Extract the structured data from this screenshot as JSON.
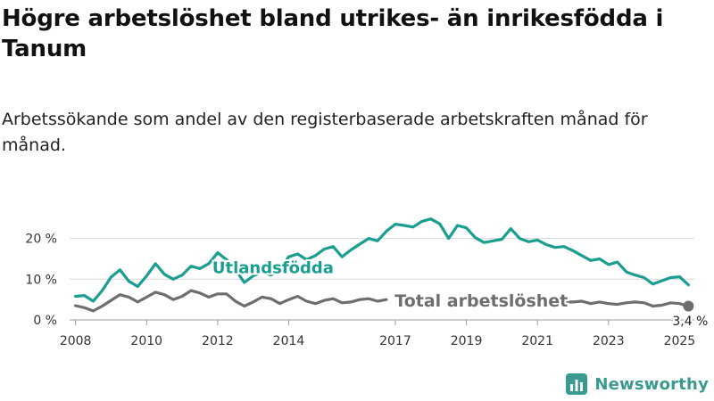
{
  "header": {
    "title": "Högre arbetslöshet bland utrikes- än inrikesfödda i Tanum",
    "subtitle": "Arbetssökande som andel av den registerbaserade arbetskraften månad för månad."
  },
  "brand": {
    "name": "Newsworthy",
    "icon": "bar-chart-logo-icon",
    "color": "#3a9a8f"
  },
  "chart_data": {
    "type": "line",
    "title": "Högre arbetslöshet bland utrikes- än inrikesfödda i Tanum",
    "subtitle": "Arbetssökande som andel av den registerbaserade arbetskraften månad för månad.",
    "xlabel": "",
    "ylabel": "",
    "xlim": [
      "2008-01",
      "2025-04"
    ],
    "ylim": [
      0,
      25
    ],
    "y_ticks": [
      0,
      10,
      20
    ],
    "y_tick_labels": [
      "0 %",
      "10 %",
      "20 %"
    ],
    "x_ticks": [
      "2008-01",
      "2010-01",
      "2012-01",
      "2014-01",
      "2017-01",
      "2019-01",
      "2021-01",
      "2023-01",
      "2025-01"
    ],
    "x_tick_labels": [
      "2008",
      "2010",
      "2012",
      "2014",
      "2017",
      "2019",
      "2021",
      "2023",
      "2025"
    ],
    "grid": true,
    "series": [
      {
        "name": "Utlandsfödda",
        "color": "#1a9e8f",
        "points": [
          [
            "2008-01",
            5.8
          ],
          [
            "2008-04",
            6.0
          ],
          [
            "2008-07",
            4.6
          ],
          [
            "2008-10",
            7.2
          ],
          [
            "2009-01",
            10.5
          ],
          [
            "2009-04",
            12.3
          ],
          [
            "2009-07",
            9.5
          ],
          [
            "2009-10",
            8.2
          ],
          [
            "2010-01",
            10.8
          ],
          [
            "2010-04",
            13.8
          ],
          [
            "2010-07",
            11.2
          ],
          [
            "2010-10",
            10.0
          ],
          [
            "2011-01",
            11.0
          ],
          [
            "2011-04",
            13.2
          ],
          [
            "2011-07",
            12.6
          ],
          [
            "2011-10",
            13.8
          ],
          [
            "2012-01",
            16.5
          ],
          [
            "2012-04",
            14.8
          ],
          [
            "2012-07",
            12.4
          ],
          [
            "2012-10",
            9.2
          ],
          [
            "2013-01",
            10.8
          ],
          [
            "2013-04",
            11.8
          ],
          [
            "2013-07",
            11.0
          ],
          [
            "2013-10",
            12.5
          ],
          [
            "2014-01",
            15.5
          ],
          [
            "2014-04",
            16.2
          ],
          [
            "2014-07",
            14.8
          ],
          [
            "2014-10",
            15.8
          ],
          [
            "2015-01",
            17.4
          ],
          [
            "2015-04",
            18.0
          ],
          [
            "2015-07",
            15.5
          ],
          [
            "2015-10",
            17.2
          ],
          [
            "2016-01",
            18.6
          ],
          [
            "2016-04",
            20.0
          ],
          [
            "2016-07",
            19.4
          ],
          [
            "2016-10",
            21.8
          ],
          [
            "2017-01",
            23.5
          ],
          [
            "2017-04",
            23.2
          ],
          [
            "2017-07",
            22.8
          ],
          [
            "2017-10",
            24.2
          ],
          [
            "2018-01",
            24.8
          ],
          [
            "2018-04",
            23.6
          ],
          [
            "2018-07",
            20.0
          ],
          [
            "2018-10",
            23.2
          ],
          [
            "2019-01",
            22.6
          ],
          [
            "2019-04",
            20.2
          ],
          [
            "2019-07",
            19.0
          ],
          [
            "2019-10",
            19.4
          ],
          [
            "2020-01",
            19.8
          ],
          [
            "2020-04",
            22.4
          ],
          [
            "2020-07",
            20.0
          ],
          [
            "2020-10",
            19.2
          ],
          [
            "2021-01",
            19.6
          ],
          [
            "2021-04",
            18.5
          ],
          [
            "2021-07",
            17.8
          ],
          [
            "2021-10",
            18.0
          ],
          [
            "2022-01",
            17.0
          ],
          [
            "2022-04",
            15.8
          ],
          [
            "2022-07",
            14.6
          ],
          [
            "2022-10",
            15.0
          ],
          [
            "2023-01",
            13.6
          ],
          [
            "2023-04",
            14.2
          ],
          [
            "2023-07",
            11.8
          ],
          [
            "2023-10",
            11.0
          ],
          [
            "2024-01",
            10.4
          ],
          [
            "2024-04",
            8.8
          ],
          [
            "2024-07",
            9.6
          ],
          [
            "2024-10",
            10.4
          ],
          [
            "2025-01",
            10.6
          ],
          [
            "2025-04",
            8.6
          ]
        ]
      },
      {
        "name": "Total arbetslöshet",
        "color": "#6e6e6e",
        "points": [
          [
            "2008-01",
            3.5
          ],
          [
            "2008-04",
            3.0
          ],
          [
            "2008-07",
            2.2
          ],
          [
            "2008-10",
            3.4
          ],
          [
            "2009-01",
            4.8
          ],
          [
            "2009-04",
            6.2
          ],
          [
            "2009-07",
            5.6
          ],
          [
            "2009-10",
            4.4
          ],
          [
            "2010-01",
            5.6
          ],
          [
            "2010-04",
            6.8
          ],
          [
            "2010-07",
            6.2
          ],
          [
            "2010-10",
            5.0
          ],
          [
            "2011-01",
            5.8
          ],
          [
            "2011-04",
            7.2
          ],
          [
            "2011-07",
            6.6
          ],
          [
            "2011-10",
            5.6
          ],
          [
            "2012-01",
            6.4
          ],
          [
            "2012-04",
            6.4
          ],
          [
            "2012-07",
            4.6
          ],
          [
            "2012-10",
            3.4
          ],
          [
            "2013-01",
            4.4
          ],
          [
            "2013-04",
            5.6
          ],
          [
            "2013-07",
            5.2
          ],
          [
            "2013-10",
            4.0
          ],
          [
            "2014-01",
            5.0
          ],
          [
            "2014-04",
            5.8
          ],
          [
            "2014-07",
            4.6
          ],
          [
            "2014-10",
            4.0
          ],
          [
            "2015-01",
            4.8
          ],
          [
            "2015-04",
            5.2
          ],
          [
            "2015-07",
            4.2
          ],
          [
            "2015-10",
            4.4
          ],
          [
            "2016-01",
            5.0
          ],
          [
            "2016-04",
            5.2
          ],
          [
            "2016-07",
            4.6
          ],
          [
            "2016-10",
            5.0
          ]
        ],
        "segment2_start": "2021-04",
        "points_2": [
          [
            "2021-04",
            4.4
          ],
          [
            "2021-07",
            4.0
          ],
          [
            "2021-10",
            4.4
          ],
          [
            "2022-01",
            4.4
          ],
          [
            "2022-04",
            4.6
          ],
          [
            "2022-07",
            4.0
          ],
          [
            "2022-10",
            4.4
          ],
          [
            "2023-01",
            4.0
          ],
          [
            "2023-04",
            3.8
          ],
          [
            "2023-07",
            4.2
          ],
          [
            "2023-10",
            4.4
          ],
          [
            "2024-01",
            4.2
          ],
          [
            "2024-04",
            3.4
          ],
          [
            "2024-07",
            3.6
          ],
          [
            "2024-10",
            4.2
          ],
          [
            "2025-01",
            4.0
          ],
          [
            "2025-04",
            3.4
          ]
        ]
      }
    ],
    "annotations": [
      {
        "text": "Utlandsfödda",
        "series": "Utlandsfödda",
        "at": "2012-01",
        "value": 12.8
      },
      {
        "text": "Total arbetslöshet",
        "series": "Total arbetslöshet",
        "at": "2016-11",
        "value": 4.6
      },
      {
        "text": "3,4 %",
        "series": "Total arbetslöshet",
        "at": "2025-04",
        "value": 3.4
      }
    ]
  }
}
